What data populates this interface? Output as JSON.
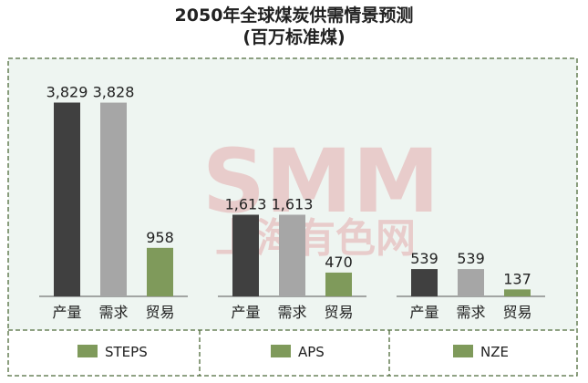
{
  "chart_data": {
    "type": "bar",
    "title": "2050年全球煤炭供需情景预测",
    "subtitle": "(百万标准煤)",
    "categories": [
      "产量",
      "需求",
      "贸易"
    ],
    "groups": [
      {
        "name": "STEPS",
        "values": [
          3829,
          3828,
          958
        ]
      },
      {
        "name": "APS",
        "values": [
          1613,
          1613,
          470
        ]
      },
      {
        "name": "NZE",
        "values": [
          539,
          539,
          137
        ]
      }
    ],
    "value_labels": {
      "STEPS": [
        "3,829",
        "3,828",
        "958"
      ],
      "APS": [
        "1,613",
        "1,613",
        "470"
      ],
      "NZE": [
        "539",
        "539",
        "137"
      ]
    },
    "ylim": [
      0,
      4000
    ],
    "grid": false,
    "colors": {
      "产量": "#404040",
      "需求": "#a6a6a6",
      "贸易": "#7f9a5b",
      "frame": "#4e6b3a",
      "panel": "#eef5f1"
    }
  },
  "watermark": {
    "line1": "SMM",
    "line2": "上海有色网"
  }
}
